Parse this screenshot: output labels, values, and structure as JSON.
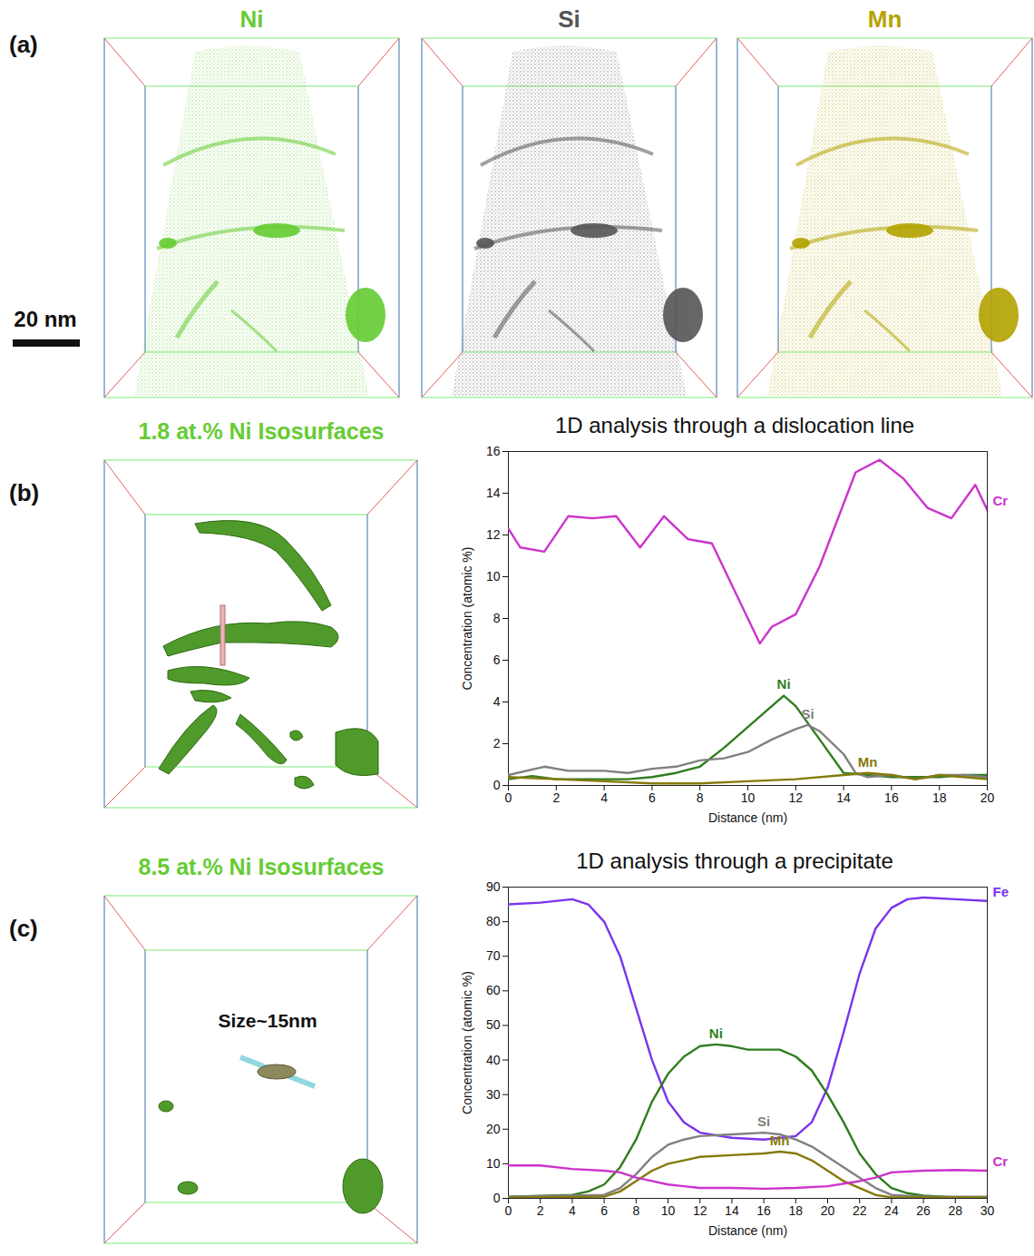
{
  "figure": {
    "panel_a": {
      "letter": "(a)",
      "scale_bar": "20 nm",
      "maps": [
        {
          "label": "Ni",
          "color": "#66cc33"
        },
        {
          "label": "Si",
          "color": "#555555"
        },
        {
          "label": "Mn",
          "color": "#b3a300"
        }
      ]
    },
    "panel_b": {
      "letter": "(b)",
      "title": "1.8 at.% Ni Isosurfaces"
    },
    "panel_c": {
      "letter": "(c)",
      "title": "8.5 at.% Ni Isosurfaces",
      "annotation": "Size~15nm"
    }
  },
  "chart_data": [
    {
      "type": "line",
      "title": "1D analysis through a dislocation line",
      "x_label": "Distance (nm)",
      "y_label": "Concentration (atomic %)",
      "xlim": [
        0,
        20
      ],
      "ylim": [
        0,
        16
      ],
      "xticks": [
        0,
        2,
        4,
        6,
        8,
        10,
        12,
        14,
        16,
        18,
        20
      ],
      "yticks": [
        0,
        2,
        4,
        6,
        8,
        10,
        12,
        14,
        16
      ],
      "grid": false,
      "series": [
        {
          "name": "Cr",
          "color": "#cc33cc",
          "x": [
            0,
            0.5,
            1.5,
            2.5,
            3.5,
            4.5,
            5.5,
            6.5,
            7.5,
            8.5,
            10.5,
            11,
            12,
            13,
            14.5,
            15.5,
            16.5,
            17.5,
            18.5,
            19.5,
            20
          ],
          "values": [
            12.3,
            11.4,
            11.2,
            12.9,
            12.8,
            12.9,
            11.4,
            12.9,
            11.8,
            11.6,
            6.8,
            7.6,
            8.2,
            10.5,
            15.0,
            15.6,
            14.7,
            13.3,
            12.8,
            14.4,
            13.2
          ]
        },
        {
          "name": "Ni",
          "color": "#2f7d1e",
          "x": [
            0,
            1,
            2,
            3,
            4,
            5,
            6,
            7,
            8,
            9,
            10,
            11,
            11.5,
            12,
            13,
            14,
            15,
            16,
            17,
            18,
            19,
            20
          ],
          "values": [
            0.3,
            0.45,
            0.3,
            0.3,
            0.3,
            0.3,
            0.4,
            0.6,
            0.9,
            1.8,
            2.8,
            3.8,
            4.3,
            3.8,
            2.2,
            0.6,
            0.5,
            0.4,
            0.4,
            0.4,
            0.5,
            0.5
          ]
        },
        {
          "name": "Si",
          "color": "#808080",
          "x": [
            0,
            1.5,
            2.5,
            4,
            5,
            6,
            7,
            8,
            9,
            10,
            11,
            12,
            12.5,
            13,
            14,
            14.5,
            15,
            16,
            17,
            18,
            19,
            20
          ],
          "values": [
            0.5,
            0.9,
            0.7,
            0.7,
            0.6,
            0.8,
            0.9,
            1.2,
            1.3,
            1.6,
            2.2,
            2.7,
            2.9,
            2.6,
            1.5,
            0.6,
            0.4,
            0.5,
            0.3,
            0.5,
            0.5,
            0.4
          ]
        },
        {
          "name": "Mn",
          "color": "#857a0a",
          "x": [
            0,
            2,
            4,
            6,
            8,
            10,
            12,
            14,
            15,
            16,
            17,
            18,
            19,
            20
          ],
          "values": [
            0.4,
            0.3,
            0.2,
            0.1,
            0.1,
            0.2,
            0.3,
            0.5,
            0.6,
            0.5,
            0.3,
            0.5,
            0.4,
            0.3
          ]
        }
      ]
    },
    {
      "type": "line",
      "title": "1D analysis through a precipitate",
      "x_label": "Distance (nm)",
      "y_label": "Concentration (atomic %)",
      "xlim": [
        0,
        30
      ],
      "ylim": [
        0,
        90
      ],
      "xticks": [
        0,
        2,
        4,
        6,
        8,
        10,
        12,
        14,
        16,
        18,
        20,
        22,
        24,
        26,
        28,
        30
      ],
      "yticks": [
        0,
        10,
        20,
        30,
        40,
        50,
        60,
        70,
        80,
        90
      ],
      "grid": false,
      "series": [
        {
          "name": "Fe",
          "color": "#7a33ee",
          "x": [
            0,
            2,
            4,
            5,
            6,
            7,
            8,
            9,
            10,
            11,
            12,
            14,
            16,
            18,
            19,
            20,
            21,
            22,
            23,
            24,
            25,
            26,
            28,
            30
          ],
          "values": [
            85,
            85.5,
            86.5,
            85,
            80,
            70,
            55,
            40,
            28,
            22,
            19,
            17.5,
            17,
            18,
            22,
            32,
            48,
            65,
            78,
            84,
            86.5,
            87,
            86.5,
            86
          ]
        },
        {
          "name": "Ni",
          "color": "#2f7d1e",
          "x": [
            0,
            4,
            5,
            6,
            7,
            8,
            9,
            10,
            11,
            12,
            13,
            14,
            15,
            16,
            17,
            18,
            19,
            20,
            21,
            22,
            23,
            24,
            25,
            26,
            28,
            30
          ],
          "values": [
            0.5,
            1,
            2,
            4,
            9,
            17,
            28,
            36,
            41,
            44,
            44.5,
            44,
            43,
            43,
            43,
            41,
            37,
            30,
            22,
            13,
            7,
            3,
            1.5,
            0.8,
            0.3,
            0.3
          ]
        },
        {
          "name": "Si",
          "color": "#808080",
          "x": [
            0,
            6,
            7,
            8,
            9,
            10,
            11,
            12,
            14,
            16,
            17,
            18,
            19,
            20,
            21,
            22,
            23,
            24,
            26,
            30
          ],
          "values": [
            0.5,
            1,
            3,
            7,
            12,
            15.5,
            17,
            18,
            18.5,
            19,
            18.5,
            17,
            15,
            12,
            9,
            6,
            3,
            1,
            0.5,
            0.5
          ]
        },
        {
          "name": "Mn",
          "color": "#857a0a",
          "x": [
            0,
            6,
            7,
            8,
            9,
            10,
            11,
            12,
            14,
            16,
            17,
            18,
            19,
            20,
            21,
            22,
            23,
            24,
            30
          ],
          "values": [
            0.2,
            0.5,
            2,
            5,
            8,
            10,
            11,
            12,
            12.5,
            13,
            13.5,
            13,
            11,
            8,
            5,
            3,
            1,
            0.3,
            0.2
          ]
        },
        {
          "name": "Cr",
          "color": "#cc33cc",
          "x": [
            0,
            2,
            4,
            6,
            7,
            8,
            9,
            10,
            11,
            12,
            14,
            16,
            18,
            20,
            22,
            23,
            24,
            26,
            28,
            30
          ],
          "values": [
            9.5,
            9.5,
            8.5,
            8,
            7.5,
            6,
            5,
            4,
            3.5,
            3,
            3,
            2.8,
            3,
            3.5,
            5,
            6,
            7.5,
            8,
            8.2,
            8
          ]
        }
      ]
    }
  ]
}
